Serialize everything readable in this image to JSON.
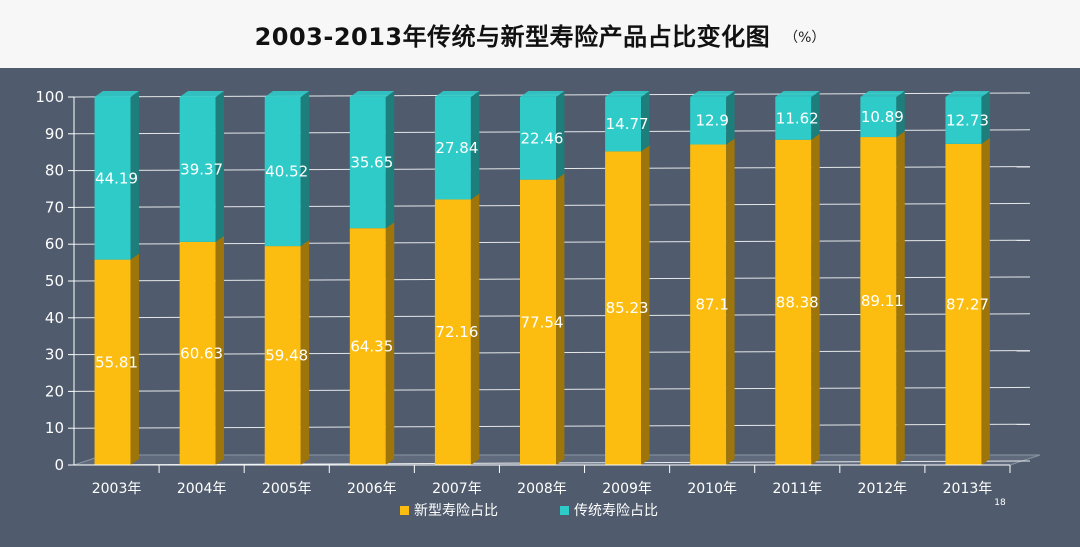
{
  "chart_data": {
    "type": "bar",
    "stacked": true,
    "title": "2003-2013年传统与新型寿险产品占比变化图",
    "unit": "（%）",
    "categories": [
      "2003年",
      "2004年",
      "2005年",
      "2006年",
      "2007年",
      "2008年",
      "2009年",
      "2010年",
      "2011年",
      "2012年",
      "2013年"
    ],
    "series": [
      {
        "name": "新型寿险占比",
        "color": "#fdbd10",
        "values": [
          55.81,
          60.63,
          59.48,
          64.35,
          72.16,
          77.54,
          85.23,
          87.1,
          88.38,
          89.11,
          87.27
        ]
      },
      {
        "name": "传统寿险占比",
        "color": "#2ecbc8",
        "values": [
          44.19,
          39.37,
          40.52,
          35.65,
          27.84,
          22.46,
          14.77,
          12.9,
          11.62,
          10.89,
          12.73
        ]
      }
    ],
    "ylim": [
      0,
      100
    ],
    "yticks": [
      0,
      10,
      20,
      30,
      40,
      50,
      60,
      70,
      80,
      90,
      100
    ],
    "grid": true,
    "legend_position": "bottom"
  },
  "page_number": "18"
}
